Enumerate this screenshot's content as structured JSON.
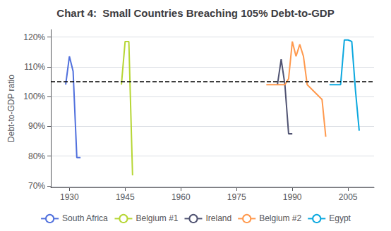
{
  "chart_data": {
    "type": "line",
    "title": "Chart 4:  Small Countries Breaching 105% Debt-to-GDP",
    "ylabel": "Debt-to-GDP ratio",
    "xlim": [
      1925,
      2012
    ],
    "ylim": [
      0.695,
      1.225
    ],
    "xticks": [
      1930,
      1945,
      1960,
      1975,
      1990,
      2005
    ],
    "yticks": [
      {
        "value": 0.7,
        "label": "70%"
      },
      {
        "value": 0.8,
        "label": "80%"
      },
      {
        "value": 0.9,
        "label": "90%"
      },
      {
        "value": 1.0,
        "label": "100%"
      },
      {
        "value": 1.1,
        "label": "110%"
      },
      {
        "value": 1.2,
        "label": "120%"
      }
    ],
    "threshold": 1.05,
    "grid": true,
    "legend": "bottom",
    "series": [
      {
        "name": "South Africa",
        "x": [
          1929,
          1930,
          1931,
          1932,
          1933
        ],
        "values": [
          1.04,
          1.135,
          1.085,
          0.795,
          0.795
        ]
      },
      {
        "name": "Belgium #1",
        "x": [
          1944,
          1945,
          1946,
          1947
        ],
        "values": [
          1.04,
          1.185,
          1.185,
          0.735
        ]
      },
      {
        "name": "Ireland",
        "x": [
          1986,
          1987,
          1988,
          1989,
          1990
        ],
        "values": [
          1.04,
          1.125,
          1.04,
          0.875,
          0.875
        ]
      },
      {
        "name": "Belgium #2",
        "x": [
          1983,
          1988,
          1989,
          1990,
          1991,
          1992,
          1993,
          1994,
          1998,
          1999
        ],
        "values": [
          1.04,
          1.04,
          1.06,
          1.185,
          1.135,
          1.175,
          1.135,
          1.04,
          0.99,
          0.865
        ]
      },
      {
        "name": "Egypt",
        "x": [
          2000,
          2001,
          2003,
          2004,
          2005,
          2006,
          2007,
          2008
        ],
        "values": [
          1.04,
          1.04,
          1.04,
          1.19,
          1.19,
          1.185,
          1.02,
          0.885
        ]
      }
    ]
  }
}
